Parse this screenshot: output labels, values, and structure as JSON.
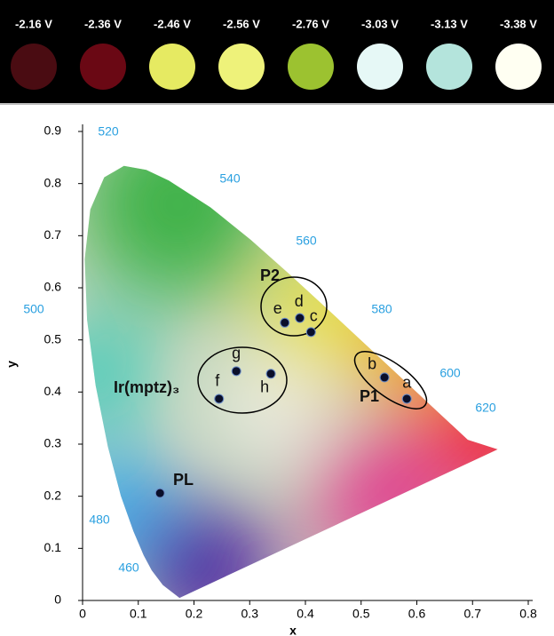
{
  "photos": [
    {
      "label": "-2.16 V",
      "color": "#4a0c12"
    },
    {
      "label": "-2.36 V",
      "color": "#6a0814"
    },
    {
      "label": "-2.46 V",
      "color": "#e6ea62"
    },
    {
      "label": "-2.56 V",
      "color": "#eef27a"
    },
    {
      "label": "-2.76 V",
      "color": "#9cc230"
    },
    {
      "label": "-3.03 V",
      "color": "#e6f8f6"
    },
    {
      "label": "-3.13 V",
      "color": "#b4e4dc"
    },
    {
      "label": "-3.38 V",
      "color": "#fffff2"
    }
  ],
  "chart_data": {
    "type": "scatter",
    "x_label": "x",
    "y_label": "y",
    "xlim": [
      0,
      0.8
    ],
    "ylim": [
      0,
      0.9
    ],
    "xticks": [
      0,
      0.1,
      0.2,
      0.3,
      0.4,
      0.5,
      0.6,
      0.7,
      0.8
    ],
    "yticks": [
      0,
      0.1,
      0.2,
      0.3,
      0.4,
      0.5,
      0.6,
      0.7,
      0.8,
      0.9
    ],
    "x": [
      0.582,
      0.542,
      0.41,
      0.39,
      0.363,
      0.245,
      0.276,
      0.338,
      0.139
    ],
    "y": [
      0.387,
      0.428,
      0.515,
      0.542,
      0.533,
      0.387,
      0.44,
      0.435,
      0.206
    ],
    "point_labels": [
      "a",
      "b",
      "c",
      "d",
      "e",
      "f",
      "g",
      "h",
      null
    ],
    "color": "#0a0f2a",
    "annotations": [
      "P1",
      "P2",
      "Ir(mptz)₃",
      "PL"
    ],
    "wavelength_labels": [
      "520",
      "540",
      "560",
      "580",
      "500",
      "600",
      "620",
      "480",
      "460"
    ]
  }
}
